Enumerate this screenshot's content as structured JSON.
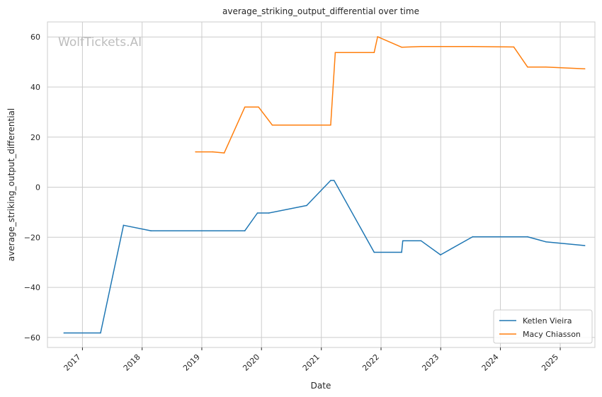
{
  "chart_data": {
    "type": "line",
    "title": "average_striking_output_differential over time",
    "xlabel": "Date",
    "ylabel": "average_striking_output_differential",
    "watermark": "WolfTickets.AI",
    "x_axis": "date",
    "xlim": [
      "2016-06-01",
      "2025-08-01"
    ],
    "ylim": [
      -64,
      66
    ],
    "xticks": [
      {
        "date": "2017-01-01",
        "label": "2017"
      },
      {
        "date": "2018-01-01",
        "label": "2018"
      },
      {
        "date": "2019-01-01",
        "label": "2019"
      },
      {
        "date": "2020-01-01",
        "label": "2020"
      },
      {
        "date": "2021-01-01",
        "label": "2021"
      },
      {
        "date": "2022-01-01",
        "label": "2022"
      },
      {
        "date": "2023-01-01",
        "label": "2023"
      },
      {
        "date": "2024-01-01",
        "label": "2024"
      },
      {
        "date": "2025-01-01",
        "label": "2025"
      }
    ],
    "yticks": [
      {
        "value": 60,
        "label": "60"
      },
      {
        "value": 40,
        "label": "40"
      },
      {
        "value": 20,
        "label": "20"
      },
      {
        "value": 0,
        "label": "0"
      },
      {
        "value": -20,
        "label": "−20"
      },
      {
        "value": -40,
        "label": "−40"
      },
      {
        "value": -60,
        "label": "−60"
      }
    ],
    "grid": true,
    "legend_position": "lower-right",
    "series": [
      {
        "name": "Ketlen Vieira",
        "color": "#1f77b4",
        "points": [
          {
            "x": "2016-09-10",
            "y": -58.2
          },
          {
            "x": "2017-04-22",
            "y": -58.2
          },
          {
            "x": "2017-09-09",
            "y": -15.2
          },
          {
            "x": "2018-02-24",
            "y": -17.4
          },
          {
            "x": "2019-09-21",
            "y": -17.4
          },
          {
            "x": "2019-12-07",
            "y": -10.3
          },
          {
            "x": "2020-02-15",
            "y": -10.3
          },
          {
            "x": "2020-10-03",
            "y": -7.3
          },
          {
            "x": "2021-02-27",
            "y": 2.7
          },
          {
            "x": "2021-03-20",
            "y": 2.7
          },
          {
            "x": "2021-11-20",
            "y": -26.0
          },
          {
            "x": "2022-05-07",
            "y": -26.0
          },
          {
            "x": "2022-05-14",
            "y": -21.4
          },
          {
            "x": "2022-09-03",
            "y": -21.4
          },
          {
            "x": "2022-12-31",
            "y": -27.0
          },
          {
            "x": "2023-07-15",
            "y": -19.8
          },
          {
            "x": "2024-06-15",
            "y": -19.8
          },
          {
            "x": "2024-10-05",
            "y": -21.8
          },
          {
            "x": "2025-05-31",
            "y": -23.3
          }
        ]
      },
      {
        "name": "Macy Chiasson",
        "color": "#ff7f0e",
        "points": [
          {
            "x": "2018-11-24",
            "y": 14.1
          },
          {
            "x": "2019-03-09",
            "y": 14.1
          },
          {
            "x": "2019-05-18",
            "y": 13.7
          },
          {
            "x": "2019-09-21",
            "y": 32.0
          },
          {
            "x": "2019-12-14",
            "y": 32.0
          },
          {
            "x": "2020-03-07",
            "y": 24.8
          },
          {
            "x": "2021-02-27",
            "y": 24.8
          },
          {
            "x": "2021-03-27",
            "y": 53.8
          },
          {
            "x": "2021-11-20",
            "y": 53.8
          },
          {
            "x": "2021-12-11",
            "y": 60.1
          },
          {
            "x": "2022-05-07",
            "y": 55.9
          },
          {
            "x": "2022-09-03",
            "y": 56.2
          },
          {
            "x": "2023-07-15",
            "y": 56.2
          },
          {
            "x": "2024-03-23",
            "y": 56.0
          },
          {
            "x": "2024-06-15",
            "y": 48.0
          },
          {
            "x": "2024-10-05",
            "y": 48.0
          },
          {
            "x": "2025-05-31",
            "y": 47.3
          }
        ]
      }
    ]
  }
}
